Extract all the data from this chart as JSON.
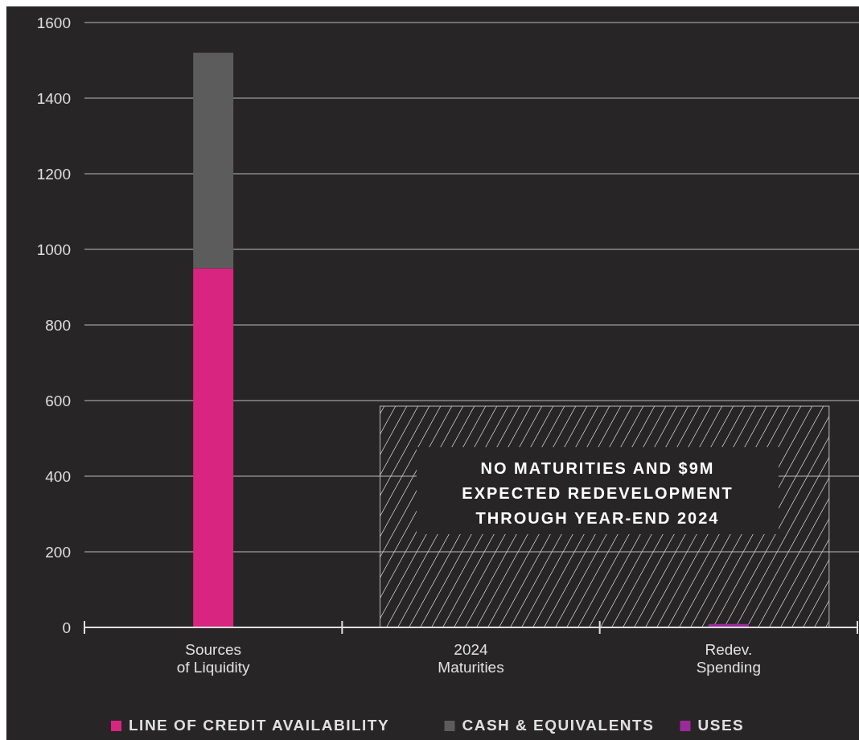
{
  "chart_data": {
    "type": "bar",
    "stacked": true,
    "categories": [
      "Sources\nof Liquidity",
      "2024\nMaturities",
      "Redev.\nSpending"
    ],
    "series": [
      {
        "name": "LINE OF CREDIT AVAILABILITY",
        "color": "#d8257f",
        "values": [
          950,
          0,
          0
        ]
      },
      {
        "name": "CASH & EQUIVALENTS",
        "color": "#5c5c5c",
        "values": [
          570,
          0,
          0
        ]
      },
      {
        "name": "USES",
        "color": "#9b2a9b",
        "values": [
          0,
          0,
          9
        ]
      }
    ],
    "ylim": [
      0,
      1600
    ],
    "yticks": [
      0,
      200,
      400,
      600,
      800,
      1000,
      1200,
      1400,
      1600
    ],
    "grid": "y",
    "legend": "bottom",
    "annotations": [
      "NO MATURITIES AND $9M\nEXPECTED REDEVELOPMENT\nTHROUGH YEAR-END 2024"
    ]
  }
}
